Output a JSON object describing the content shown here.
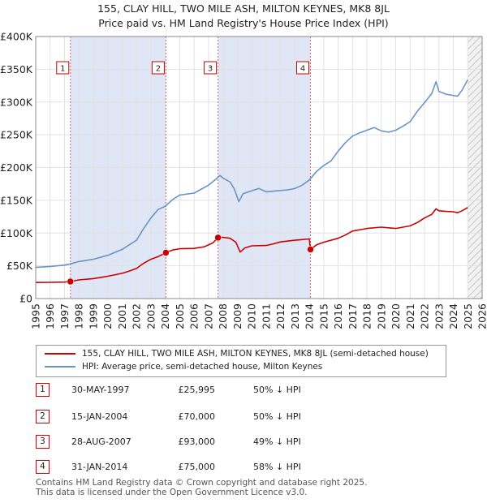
{
  "chart_data": {
    "type": "line",
    "title": "155, CLAY HILL, TWO MILE ASH, MILTON KEYNES, MK8 8JL",
    "subtitle": "Price paid vs. HM Land Registry's House Price Index (HPI)",
    "xlim": [
      1995,
      2026
    ],
    "ylim": [
      0,
      400000
    ],
    "x_ticks": [
      1995,
      1996,
      1997,
      1998,
      1999,
      2000,
      2001,
      2002,
      2003,
      2004,
      2005,
      2006,
      2007,
      2008,
      2009,
      2010,
      2011,
      2012,
      2013,
      2014,
      2015,
      2016,
      2017,
      2018,
      2019,
      2020,
      2021,
      2022,
      2023,
      2024,
      2025,
      2026
    ],
    "y_ticks": [
      {
        "value": 0,
        "label": "£0"
      },
      {
        "value": 50000,
        "label": "£50K"
      },
      {
        "value": 100000,
        "label": "£100K"
      },
      {
        "value": 150000,
        "label": "£150K"
      },
      {
        "value": 200000,
        "label": "£200K"
      },
      {
        "value": 250000,
        "label": "£250K"
      },
      {
        "value": 300000,
        "label": "£300K"
      },
      {
        "value": 350000,
        "label": "£350K"
      },
      {
        "value": 400000,
        "label": "£400K"
      }
    ],
    "grid": true,
    "shaded_periods": [
      [
        1997.41,
        2004.04
      ],
      [
        2007.66,
        2014.08
      ]
    ],
    "forecast_from": 2025.0,
    "series": [
      {
        "name": "155, CLAY HILL, TWO MILE ASH, MILTON KEYNES, MK8 8JL (semi-detached house)",
        "color": "#cc0000",
        "x": [
          1995.0,
          1996.0,
          1997.0,
          1997.41,
          1997.41,
          1998.0,
          1999.0,
          2000.0,
          2001.0,
          2001.5,
          2002.0,
          2002.5,
          2003.0,
          2003.5,
          2004.04,
          2004.04,
          2004.5,
          2005.0,
          2006.0,
          2006.7,
          2007.3,
          2007.66,
          2007.66,
          2008.0,
          2008.5,
          2008.9,
          2009.2,
          2009.5,
          2010.0,
          2011.0,
          2011.5,
          2012.0,
          2013.0,
          2013.5,
          2014.0,
          2014.08,
          2014.08,
          2014.5,
          2015.0,
          2016.0,
          2016.5,
          2017.0,
          2018.0,
          2019.0,
          2019.5,
          2020.0,
          2020.5,
          2021.0,
          2021.5,
          2022.0,
          2022.5,
          2022.8,
          2023.0,
          2023.5,
          2024.0,
          2024.3,
          2024.6,
          2025.0
        ],
        "values": [
          24500,
          24800,
          25200,
          25995,
          25995,
          28500,
          30500,
          34000,
          38500,
          42000,
          46000,
          54000,
          60000,
          64000,
          70000,
          70000,
          74000,
          76000,
          76500,
          79000,
          85000,
          93000,
          93000,
          93500,
          92000,
          86000,
          71000,
          77000,
          80500,
          81000,
          83500,
          86500,
          89000,
          90000,
          91000,
          75000,
          75000,
          82000,
          86000,
          92000,
          97000,
          103000,
          107000,
          109000,
          108000,
          107000,
          109000,
          111000,
          116000,
          123000,
          128500,
          137000,
          134000,
          133000,
          132500,
          131000,
          134000,
          139000
        ]
      },
      {
        "name": "HPI: Average price, semi-detached house, Milton Keynes",
        "color": "#6a94c7",
        "x": [
          1995.0,
          1996.0,
          1997.0,
          1997.5,
          1998.0,
          1999.0,
          2000.0,
          2001.0,
          2002.0,
          2002.5,
          2003.0,
          2003.5,
          2004.0,
          2004.5,
          2005.0,
          2006.0,
          2007.0,
          2007.5,
          2007.8,
          2008.0,
          2008.5,
          2008.8,
          2009.1,
          2009.4,
          2009.8,
          2010.5,
          2011.0,
          2012.0,
          2012.5,
          2013.0,
          2013.5,
          2014.0,
          2014.5,
          2015.0,
          2015.5,
          2016.0,
          2016.5,
          2017.0,
          2017.5,
          2018.0,
          2018.5,
          2019.0,
          2019.5,
          2020.0,
          2020.5,
          2021.0,
          2021.5,
          2022.0,
          2022.5,
          2022.8,
          2023.0,
          2023.5,
          2024.0,
          2024.3,
          2024.6,
          2025.0
        ],
        "values": [
          47500,
          49000,
          51000,
          53500,
          56500,
          60000,
          66000,
          75000,
          89000,
          107000,
          123000,
          136000,
          141000,
          151000,
          158000,
          161000,
          173000,
          182000,
          188000,
          184000,
          178000,
          167000,
          148000,
          160000,
          163000,
          168000,
          163000,
          165000,
          166000,
          168000,
          173000,
          181000,
          194000,
          203000,
          210000,
          225000,
          238000,
          248000,
          253000,
          257000,
          261000,
          256000,
          254000,
          257000,
          263000,
          270000,
          286000,
          299000,
          313000,
          331000,
          316000,
          312000,
          310000,
          309000,
          318000,
          334000
        ]
      }
    ],
    "sales": [
      {
        "id": "1",
        "x": 1997.41,
        "value": 25995
      },
      {
        "id": "2",
        "x": 2004.04,
        "value": 70000
      },
      {
        "id": "3",
        "x": 2007.66,
        "value": 93000
      },
      {
        "id": "4",
        "x": 2014.08,
        "value": 75000
      }
    ]
  },
  "legend": {
    "property_label": "155, CLAY HILL, TWO MILE ASH, MILTON KEYNES, MK8 8JL (semi-detached house)",
    "hpi_label": "HPI: Average price, semi-detached house, Milton Keynes",
    "property_color": "#cc0000",
    "hpi_color": "#6a94c7"
  },
  "sales_table": [
    {
      "num": "1",
      "date": "30-MAY-1997",
      "price": "£25,995",
      "hpi": "50% ↓ HPI"
    },
    {
      "num": "2",
      "date": "15-JAN-2004",
      "price": "£70,000",
      "hpi": "50% ↓ HPI"
    },
    {
      "num": "3",
      "date": "28-AUG-2007",
      "price": "£93,000",
      "hpi": "49% ↓ HPI"
    },
    {
      "num": "4",
      "date": "31-JAN-2014",
      "price": "£75,000",
      "hpi": "58% ↓ HPI"
    }
  ],
  "footer": {
    "line1": "Contains HM Land Registry data © Crown copyright and database right 2025.",
    "line2": "This data is licensed under the Open Government Licence v3.0."
  }
}
